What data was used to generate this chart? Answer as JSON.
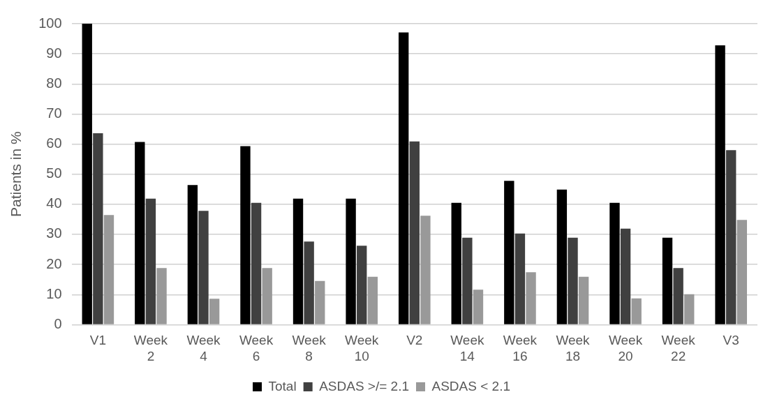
{
  "chart_data": {
    "type": "bar",
    "ylabel": "Patients in %",
    "categories": [
      "V1",
      "Week 2",
      "Week 4",
      "Week 6",
      "Week 8",
      "Week 10",
      "V2",
      "Week 14",
      "Week 16",
      "Week 18",
      "Week 20",
      "Week 22",
      "V3"
    ],
    "series": [
      {
        "name": "Total",
        "color": "#000000",
        "values": [
          100,
          60.7,
          46.4,
          59.3,
          41.9,
          41.9,
          97.1,
          40.5,
          47.8,
          44.9,
          40.5,
          28.9,
          92.8
        ]
      },
      {
        "name": "ASDAS >/= 2.1",
        "color": "#404040",
        "values": [
          63.6,
          41.9,
          37.8,
          40.5,
          27.6,
          26.2,
          60.9,
          28.9,
          30.3,
          28.9,
          31.9,
          18.8,
          58
        ]
      },
      {
        "name": "ASDAS < 2.1",
        "color": "#999999",
        "values": [
          36.4,
          18.8,
          8.6,
          18.8,
          14.5,
          15.9,
          36.2,
          11.6,
          17.4,
          15.9,
          8.7,
          10.1,
          34.8
        ]
      }
    ],
    "ylim": [
      0,
      100
    ],
    "yticks": [
      0,
      10,
      20,
      30,
      40,
      50,
      60,
      70,
      80,
      90,
      100
    ],
    "grid": "y",
    "legend": "bottom"
  }
}
